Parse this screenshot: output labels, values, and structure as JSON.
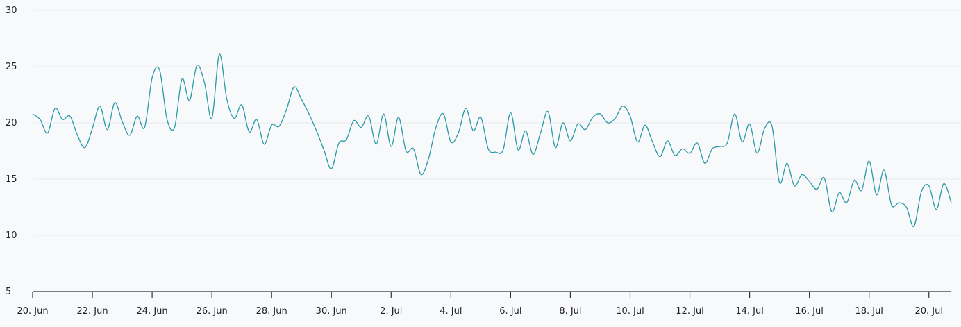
{
  "chart_data": {
    "type": "line",
    "title": "",
    "xlabel": "",
    "ylabel": "",
    "ylim": [
      5,
      30
    ],
    "yticks": [
      5,
      10,
      15,
      20,
      25,
      30
    ],
    "xlim": [
      "2024-06-20T00:00",
      "2024-07-20T18:00"
    ],
    "xticks": [
      {
        "date": "2024-06-20",
        "label": "20. Jun"
      },
      {
        "date": "2024-06-22",
        "label": "22. Jun"
      },
      {
        "date": "2024-06-24",
        "label": "24. Jun"
      },
      {
        "date": "2024-06-26",
        "label": "26. Jun"
      },
      {
        "date": "2024-06-28",
        "label": "28. Jun"
      },
      {
        "date": "2024-06-30",
        "label": "30. Jun"
      },
      {
        "date": "2024-07-02",
        "label": "2. Jul"
      },
      {
        "date": "2024-07-04",
        "label": "4. Jul"
      },
      {
        "date": "2024-07-06",
        "label": "6. Jul"
      },
      {
        "date": "2024-07-08",
        "label": "8. Jul"
      },
      {
        "date": "2024-07-10",
        "label": "10. Jul"
      },
      {
        "date": "2024-07-12",
        "label": "12. Jul"
      },
      {
        "date": "2024-07-14",
        "label": "14. Jul"
      },
      {
        "date": "2024-07-16",
        "label": "16. Jul"
      },
      {
        "date": "2024-07-18",
        "label": "18. Jul"
      },
      {
        "date": "2024-07-20",
        "label": "20. Jul"
      }
    ],
    "grid": true,
    "legend": "none",
    "color": "#2a9aa6",
    "series": [
      {
        "points": [
          [
            "2024-06-20T00:00",
            20.8
          ],
          [
            "2024-06-20T06:00",
            20.3
          ],
          [
            "2024-06-20T12:00",
            19.1
          ],
          [
            "2024-06-20T18:00",
            21.3
          ],
          [
            "2024-06-21T00:00",
            20.3
          ],
          [
            "2024-06-21T06:00",
            20.6
          ],
          [
            "2024-06-21T12:00",
            18.9
          ],
          [
            "2024-06-21T18:00",
            17.8
          ],
          [
            "2024-06-22T00:00",
            19.5
          ],
          [
            "2024-06-22T06:00",
            21.5
          ],
          [
            "2024-06-22T12:00",
            19.4
          ],
          [
            "2024-06-22T18:00",
            21.8
          ],
          [
            "2024-06-23T00:00",
            20.1
          ],
          [
            "2024-06-23T06:00",
            18.9
          ],
          [
            "2024-06-23T12:00",
            20.6
          ],
          [
            "2024-06-23T18:00",
            19.6
          ],
          [
            "2024-06-24T00:00",
            24.0
          ],
          [
            "2024-06-24T06:00",
            24.7
          ],
          [
            "2024-06-24T12:00",
            20.3
          ],
          [
            "2024-06-24T18:00",
            19.6
          ],
          [
            "2024-06-25T00:00",
            23.9
          ],
          [
            "2024-06-25T06:00",
            22.0
          ],
          [
            "2024-06-25T12:00",
            25.1
          ],
          [
            "2024-06-25T18:00",
            23.6
          ],
          [
            "2024-06-26T00:00",
            20.4
          ],
          [
            "2024-06-26T06:00",
            26.1
          ],
          [
            "2024-06-26T12:00",
            22.1
          ],
          [
            "2024-06-26T18:00",
            20.4
          ],
          [
            "2024-06-27T00:00",
            21.6
          ],
          [
            "2024-06-27T06:00",
            19.2
          ],
          [
            "2024-06-27T12:00",
            20.3
          ],
          [
            "2024-06-27T18:00",
            18.1
          ],
          [
            "2024-06-28T00:00",
            19.8
          ],
          [
            "2024-06-28T06:00",
            19.7
          ],
          [
            "2024-06-28T12:00",
            21.2
          ],
          [
            "2024-06-28T18:00",
            23.2
          ],
          [
            "2024-06-29T00:00",
            22.1
          ],
          [
            "2024-06-29T06:00",
            20.8
          ],
          [
            "2024-06-29T12:00",
            19.3
          ],
          [
            "2024-06-29T18:00",
            17.6
          ],
          [
            "2024-06-30T00:00",
            15.9
          ],
          [
            "2024-06-30T06:00",
            18.2
          ],
          [
            "2024-06-30T12:00",
            18.5
          ],
          [
            "2024-06-30T18:00",
            20.2
          ],
          [
            "2024-07-01T00:00",
            19.6
          ],
          [
            "2024-07-01T06:00",
            20.6
          ],
          [
            "2024-07-01T12:00",
            18.1
          ],
          [
            "2024-07-01T18:00",
            20.8
          ],
          [
            "2024-07-02T00:00",
            17.9
          ],
          [
            "2024-07-02T06:00",
            20.5
          ],
          [
            "2024-07-02T12:00",
            17.5
          ],
          [
            "2024-07-02T18:00",
            17.7
          ],
          [
            "2024-07-03T00:00",
            15.4
          ],
          [
            "2024-07-03T06:00",
            16.8
          ],
          [
            "2024-07-03T12:00",
            19.6
          ],
          [
            "2024-07-03T18:00",
            20.8
          ],
          [
            "2024-07-04T00:00",
            18.3
          ],
          [
            "2024-07-04T06:00",
            19.1
          ],
          [
            "2024-07-04T12:00",
            21.3
          ],
          [
            "2024-07-04T18:00",
            19.3
          ],
          [
            "2024-07-05T00:00",
            20.5
          ],
          [
            "2024-07-05T06:00",
            17.7
          ],
          [
            "2024-07-05T12:00",
            17.4
          ],
          [
            "2024-07-05T18:00",
            17.6
          ],
          [
            "2024-07-06T00:00",
            20.9
          ],
          [
            "2024-07-06T06:00",
            17.6
          ],
          [
            "2024-07-06T12:00",
            19.3
          ],
          [
            "2024-07-06T18:00",
            17.2
          ],
          [
            "2024-07-07T00:00",
            19.1
          ],
          [
            "2024-07-07T06:00",
            21.0
          ],
          [
            "2024-07-07T12:00",
            17.8
          ],
          [
            "2024-07-07T18:00",
            20.0
          ],
          [
            "2024-07-08T00:00",
            18.4
          ],
          [
            "2024-07-08T06:00",
            19.9
          ],
          [
            "2024-07-08T12:00",
            19.4
          ],
          [
            "2024-07-08T18:00",
            20.5
          ],
          [
            "2024-07-09T00:00",
            20.8
          ],
          [
            "2024-07-09T06:00",
            20.0
          ],
          [
            "2024-07-09T12:00",
            20.4
          ],
          [
            "2024-07-09T18:00",
            21.5
          ],
          [
            "2024-07-10T00:00",
            20.6
          ],
          [
            "2024-07-10T06:00",
            18.3
          ],
          [
            "2024-07-10T12:00",
            19.8
          ],
          [
            "2024-07-10T18:00",
            18.3
          ],
          [
            "2024-07-11T00:00",
            17.0
          ],
          [
            "2024-07-11T06:00",
            18.4
          ],
          [
            "2024-07-11T12:00",
            17.1
          ],
          [
            "2024-07-11T18:00",
            17.7
          ],
          [
            "2024-07-12T00:00",
            17.3
          ],
          [
            "2024-07-12T06:00",
            18.2
          ],
          [
            "2024-07-12T12:00",
            16.4
          ],
          [
            "2024-07-12T18:00",
            17.7
          ],
          [
            "2024-07-13T00:00",
            17.9
          ],
          [
            "2024-07-13T06:00",
            18.2
          ],
          [
            "2024-07-13T12:00",
            20.8
          ],
          [
            "2024-07-13T18:00",
            18.3
          ],
          [
            "2024-07-14T00:00",
            19.9
          ],
          [
            "2024-07-14T06:00",
            17.3
          ],
          [
            "2024-07-14T12:00",
            19.5
          ],
          [
            "2024-07-14T18:00",
            19.7
          ],
          [
            "2024-07-15T00:00",
            14.7
          ],
          [
            "2024-07-15T06:00",
            16.4
          ],
          [
            "2024-07-15T12:00",
            14.4
          ],
          [
            "2024-07-15T18:00",
            15.4
          ],
          [
            "2024-07-16T00:00",
            14.8
          ],
          [
            "2024-07-16T06:00",
            14.1
          ],
          [
            "2024-07-16T12:00",
            15.1
          ],
          [
            "2024-07-16T18:00",
            12.1
          ],
          [
            "2024-07-17T00:00",
            13.8
          ],
          [
            "2024-07-17T06:00",
            12.9
          ],
          [
            "2024-07-17T12:00",
            14.9
          ],
          [
            "2024-07-17T18:00",
            14.0
          ],
          [
            "2024-07-18T00:00",
            16.6
          ],
          [
            "2024-07-18T06:00",
            13.6
          ],
          [
            "2024-07-18T12:00",
            15.8
          ],
          [
            "2024-07-18T18:00",
            12.7
          ],
          [
            "2024-07-19T00:00",
            12.9
          ],
          [
            "2024-07-19T06:00",
            12.5
          ],
          [
            "2024-07-19T12:00",
            10.8
          ],
          [
            "2024-07-19T18:00",
            13.9
          ],
          [
            "2024-07-20T00:00",
            14.4
          ],
          [
            "2024-07-20T06:00",
            12.3
          ],
          [
            "2024-07-20T12:00",
            14.6
          ],
          [
            "2024-07-20T18:00",
            12.9
          ]
        ]
      }
    ]
  }
}
